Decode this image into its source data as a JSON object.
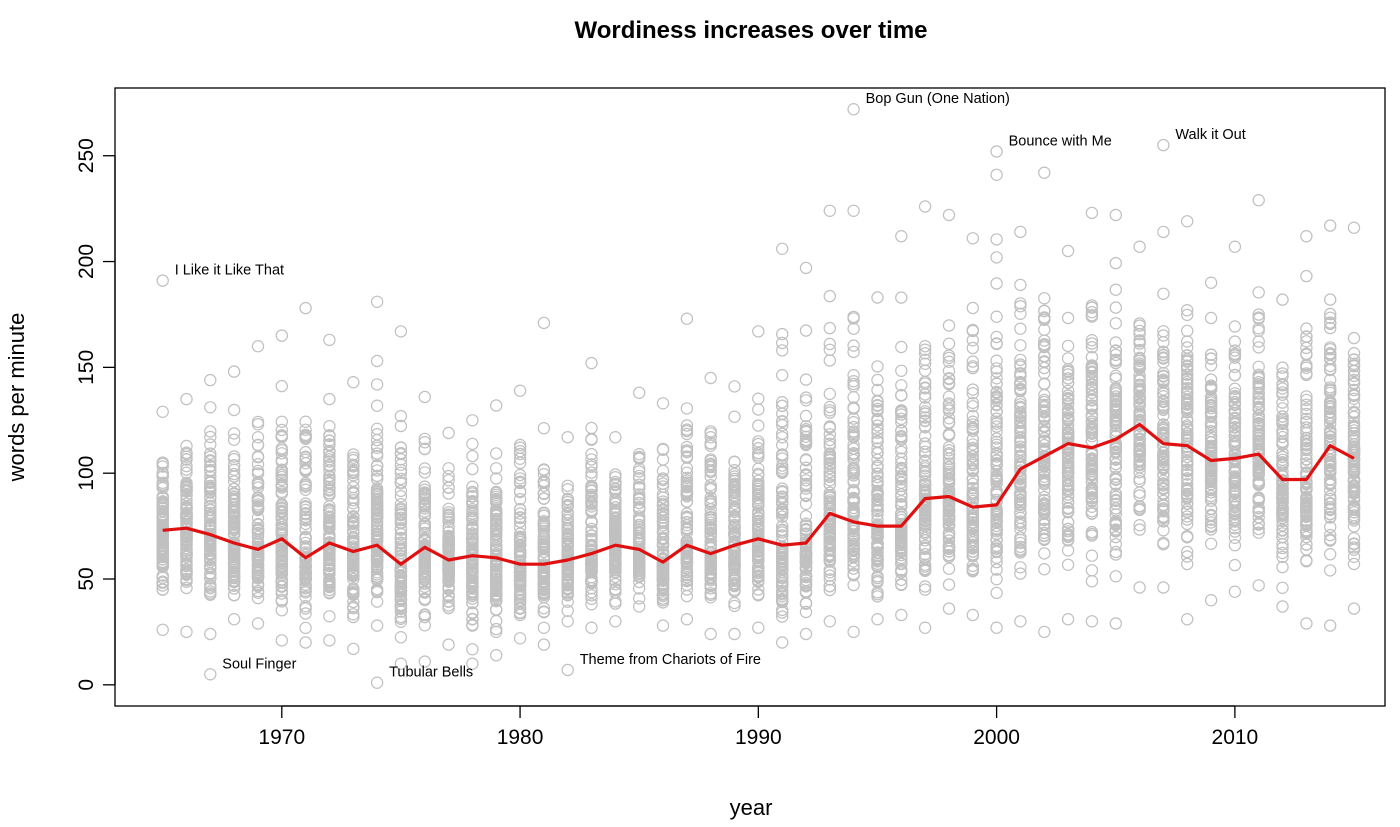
{
  "chart_data": {
    "type": "scatter",
    "title": "Wordiness increases over time",
    "xlabel": "year",
    "ylabel": "words per minute",
    "xlim": [
      1963.0,
      2016.3
    ],
    "ylim": [
      -10,
      282
    ],
    "xticks": [
      1970,
      1980,
      1990,
      2000,
      2010
    ],
    "yticks": [
      0,
      50,
      100,
      150,
      200,
      250
    ],
    "grid": false,
    "legend": "none",
    "colors": {
      "points": "#c0c0c0",
      "trend": "#e01010"
    },
    "trend": {
      "name": "",
      "x": [
        1965,
        1966,
        1967,
        1968,
        1969,
        1970,
        1971,
        1972,
        1973,
        1974,
        1975,
        1976,
        1977,
        1978,
        1979,
        1980,
        1981,
        1982,
        1983,
        1984,
        1985,
        1986,
        1987,
        1988,
        1989,
        1990,
        1991,
        1992,
        1993,
        1994,
        1995,
        1996,
        1997,
        1998,
        1999,
        2000,
        2001,
        2002,
        2003,
        2004,
        2005,
        2006,
        2007,
        2008,
        2009,
        2010,
        2011,
        2012,
        2013,
        2014,
        2015
      ],
      "y": [
        73,
        74,
        71,
        67,
        64,
        69,
        60,
        67,
        63,
        66,
        57,
        65,
        59,
        61,
        60,
        57,
        57,
        59,
        62,
        66,
        64,
        58,
        66,
        62,
        66,
        69,
        66,
        67,
        81,
        77,
        75,
        75,
        88,
        89,
        84,
        85,
        102,
        108,
        114,
        112,
        116,
        123,
        114,
        113,
        106,
        107,
        109,
        97,
        97,
        113,
        107
      ]
    },
    "points_outliers": [
      {
        "x": 1965,
        "y": 191
      },
      {
        "x": 1967,
        "y": 5
      },
      {
        "x": 1974,
        "y": 1
      },
      {
        "x": 1982,
        "y": 7
      },
      {
        "x": 1994,
        "y": 272
      },
      {
        "x": 2000,
        "y": 252
      },
      {
        "x": 2007,
        "y": 255
      }
    ],
    "annotations": [
      {
        "text": "I Like it Like That",
        "x": 1965,
        "y": 191
      },
      {
        "text": "Soul Finger",
        "x": 1967,
        "y": 5
      },
      {
        "text": "Tubular Bells",
        "x": 1974,
        "y": 1
      },
      {
        "text": "Theme from Chariots of Fire",
        "x": 1982,
        "y": 7
      },
      {
        "text": "Bop Gun (One Nation)",
        "x": 1994,
        "y": 272
      },
      {
        "text": "Bounce with Me",
        "x": 2000,
        "y": 252
      },
      {
        "text": "Walk it Out",
        "x": 2007,
        "y": 255
      }
    ],
    "per_year_points": 100,
    "per_year_spread": [
      {
        "x": 1965,
        "min": 26,
        "max": 129
      },
      {
        "x": 1966,
        "min": 25,
        "max": 135
      },
      {
        "x": 1967,
        "min": 24,
        "max": 144
      },
      {
        "x": 1968,
        "min": 31,
        "max": 148
      },
      {
        "x": 1969,
        "min": 29,
        "max": 160
      },
      {
        "x": 1970,
        "min": 21,
        "max": 165
      },
      {
        "x": 1971,
        "min": 20,
        "max": 178
      },
      {
        "x": 1972,
        "min": 21,
        "max": 163
      },
      {
        "x": 1973,
        "min": 17,
        "max": 143
      },
      {
        "x": 1974,
        "min": 28,
        "max": 181
      },
      {
        "x": 1975,
        "min": 10,
        "max": 167
      },
      {
        "x": 1976,
        "min": 11,
        "max": 136
      },
      {
        "x": 1977,
        "min": 19,
        "max": 119
      },
      {
        "x": 1978,
        "min": 10,
        "max": 125
      },
      {
        "x": 1979,
        "min": 14,
        "max": 132
      },
      {
        "x": 1980,
        "min": 22,
        "max": 139
      },
      {
        "x": 1981,
        "min": 19,
        "max": 171
      },
      {
        "x": 1982,
        "min": 30,
        "max": 117
      },
      {
        "x": 1983,
        "min": 27,
        "max": 152
      },
      {
        "x": 1984,
        "min": 30,
        "max": 117
      },
      {
        "x": 1985,
        "min": 37,
        "max": 138
      },
      {
        "x": 1986,
        "min": 28,
        "max": 133
      },
      {
        "x": 1987,
        "min": 31,
        "max": 173
      },
      {
        "x": 1988,
        "min": 24,
        "max": 145
      },
      {
        "x": 1989,
        "min": 24,
        "max": 141
      },
      {
        "x": 1990,
        "min": 27,
        "max": 167
      },
      {
        "x": 1991,
        "min": 20,
        "max": 206
      },
      {
        "x": 1992,
        "min": 24,
        "max": 197
      },
      {
        "x": 1993,
        "min": 30,
        "max": 224
      },
      {
        "x": 1994,
        "min": 25,
        "max": 224
      },
      {
        "x": 1995,
        "min": 31,
        "max": 183
      },
      {
        "x": 1996,
        "min": 33,
        "max": 212
      },
      {
        "x": 1997,
        "min": 27,
        "max": 226
      },
      {
        "x": 1998,
        "min": 36,
        "max": 222
      },
      {
        "x": 1999,
        "min": 33,
        "max": 211
      },
      {
        "x": 2000,
        "min": 27,
        "max": 241
      },
      {
        "x": 2001,
        "min": 30,
        "max": 214
      },
      {
        "x": 2002,
        "min": 25,
        "max": 242
      },
      {
        "x": 2003,
        "min": 31,
        "max": 205
      },
      {
        "x": 2004,
        "min": 30,
        "max": 223
      },
      {
        "x": 2005,
        "min": 29,
        "max": 222
      },
      {
        "x": 2006,
        "min": 46,
        "max": 207
      },
      {
        "x": 2007,
        "min": 46,
        "max": 214
      },
      {
        "x": 2008,
        "min": 31,
        "max": 219
      },
      {
        "x": 2009,
        "min": 40,
        "max": 190
      },
      {
        "x": 2010,
        "min": 44,
        "max": 207
      },
      {
        "x": 2011,
        "min": 47,
        "max": 229
      },
      {
        "x": 2012,
        "min": 37,
        "max": 182
      },
      {
        "x": 2013,
        "min": 29,
        "max": 212
      },
      {
        "x": 2014,
        "min": 28,
        "max": 217
      },
      {
        "x": 2015,
        "min": 36,
        "max": 216
      }
    ]
  }
}
